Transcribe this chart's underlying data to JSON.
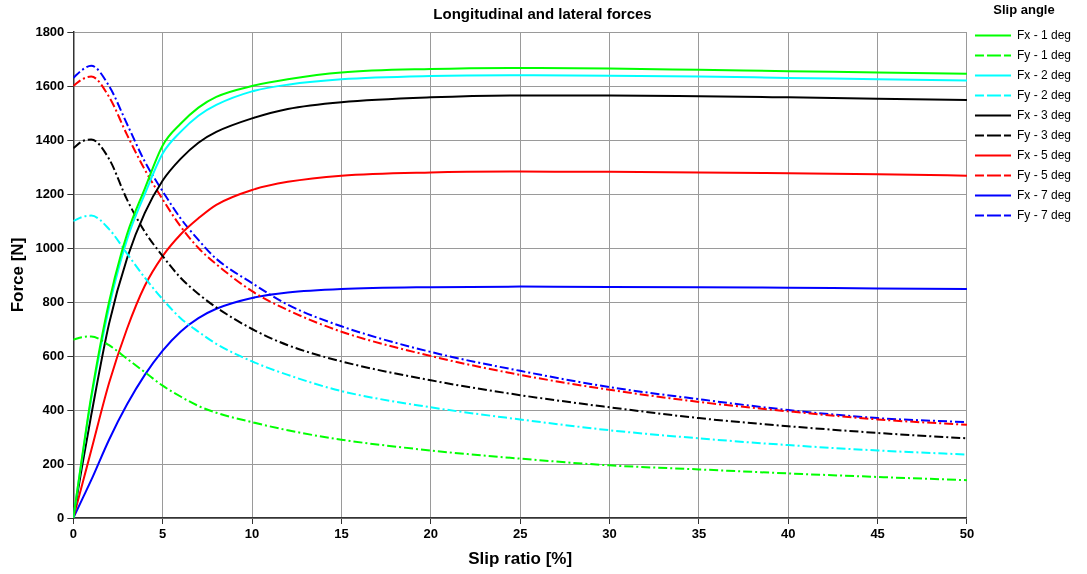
{
  "chart_data": {
    "type": "line",
    "title": "Longitudinal and lateral forces",
    "xlabel": "Slip ratio [%]",
    "ylabel": "Force [N]",
    "legend_title": "Slip angle",
    "x": [
      0,
      0.5,
      1,
      2,
      3,
      4,
      5,
      6,
      7,
      8,
      10,
      12,
      15,
      20,
      25,
      30,
      35,
      40,
      45,
      50
    ],
    "xlim": [
      0,
      50
    ],
    "xticks": [
      0,
      5,
      10,
      15,
      20,
      25,
      30,
      35,
      40,
      45,
      50
    ],
    "ylim": [
      0,
      1800
    ],
    "yticks": [
      0,
      200,
      400,
      600,
      800,
      1000,
      1200,
      1400,
      1600,
      1800
    ],
    "grid": true,
    "legend": "top right",
    "marker": "none",
    "series": [
      {
        "name": "Fx - 1 deg",
        "color": "#00ff00",
        "line_style": "solid",
        "values": [
          0,
          230,
          450,
          800,
          1050,
          1220,
          1380,
          1460,
          1520,
          1560,
          1600,
          1625,
          1650,
          1663,
          1667,
          1665,
          1660,
          1655,
          1650,
          1645
        ]
      },
      {
        "name": "Fy - 1 deg",
        "color": "#00ff00",
        "line_style": "dashed",
        "values": [
          660,
          670,
          672,
          640,
          590,
          540,
          490,
          450,
          415,
          390,
          355,
          325,
          290,
          250,
          220,
          195,
          180,
          165,
          152,
          140
        ]
      },
      {
        "name": "Fx - 2 deg",
        "color": "#00ffff",
        "line_style": "solid",
        "values": [
          0,
          225,
          440,
          780,
          1030,
          1200,
          1350,
          1430,
          1490,
          1530,
          1580,
          1605,
          1625,
          1637,
          1640,
          1638,
          1635,
          1630,
          1625,
          1620
        ]
      },
      {
        "name": "Fy - 2 deg",
        "color": "#00ffff",
        "line_style": "dashed",
        "values": [
          1100,
          1115,
          1120,
          1070,
          980,
          890,
          810,
          740,
          690,
          645,
          580,
          530,
          470,
          410,
          365,
          325,
          295,
          270,
          250,
          235
        ]
      },
      {
        "name": "Fx - 3 deg",
        "color": "#000000",
        "line_style": "solid",
        "values": [
          0,
          195,
          380,
          720,
          960,
          1130,
          1250,
          1330,
          1390,
          1430,
          1480,
          1515,
          1540,
          1558,
          1565,
          1565,
          1562,
          1558,
          1553,
          1548
        ]
      },
      {
        "name": "Fy - 3 deg",
        "color": "#000000",
        "line_style": "dashed",
        "values": [
          1370,
          1395,
          1402,
          1330,
          1180,
          1060,
          970,
          890,
          830,
          780,
          700,
          640,
          580,
          510,
          455,
          410,
          370,
          340,
          315,
          295
        ]
      },
      {
        "name": "Fx - 5 deg",
        "color": "#ff0000",
        "line_style": "solid",
        "values": [
          0,
          125,
          250,
          500,
          700,
          860,
          970,
          1050,
          1110,
          1160,
          1215,
          1245,
          1268,
          1280,
          1283,
          1282,
          1280,
          1277,
          1273,
          1268
        ]
      },
      {
        "name": "Fy - 5 deg",
        "color": "#ff0000",
        "line_style": "dashed",
        "values": [
          1600,
          1625,
          1635,
          1560,
          1420,
          1290,
          1180,
          1080,
          1000,
          940,
          840,
          770,
          690,
          600,
          530,
          475,
          430,
          395,
          365,
          345
        ]
      },
      {
        "name": "Fx - 7 deg",
        "color": "#0000ff",
        "line_style": "solid",
        "values": [
          0,
          70,
          140,
          290,
          420,
          530,
          620,
          690,
          740,
          775,
          815,
          835,
          848,
          855,
          857,
          856,
          855,
          853,
          850,
          848
        ]
      },
      {
        "name": "Fy - 7 deg",
        "color": "#0000ff",
        "line_style": "dashed",
        "values": [
          1630,
          1660,
          1675,
          1600,
          1460,
          1320,
          1210,
          1110,
          1030,
          960,
          870,
          790,
          710,
          615,
          545,
          485,
          440,
          400,
          370,
          355
        ]
      }
    ]
  }
}
